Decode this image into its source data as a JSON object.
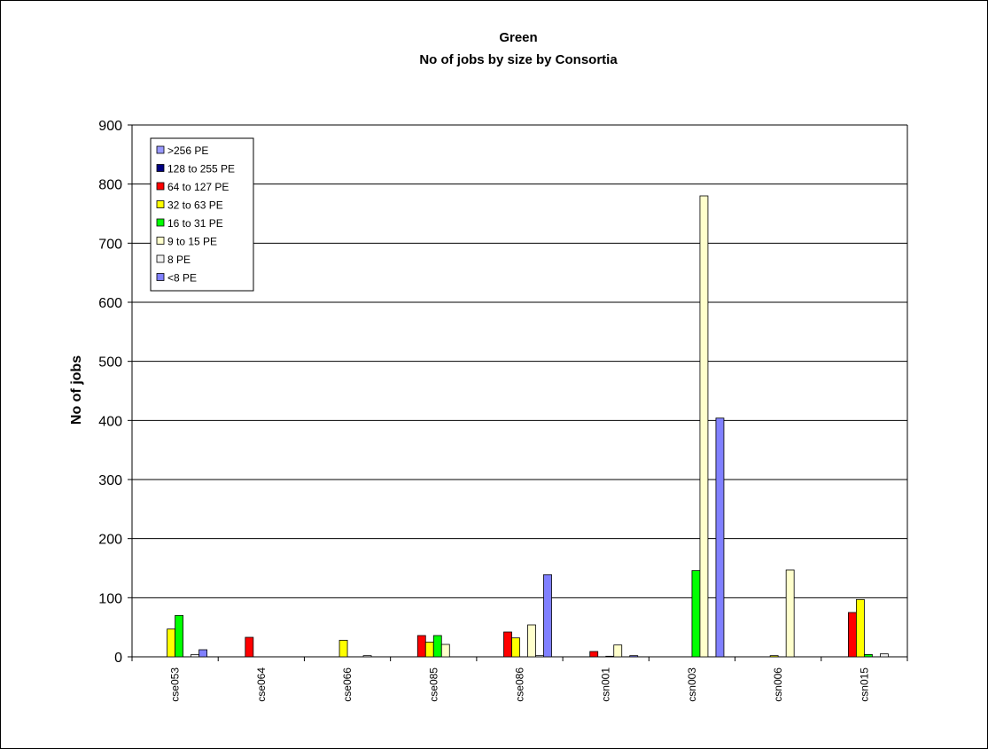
{
  "chart_data": {
    "type": "bar",
    "title": "Green",
    "subtitle": "No of jobs by size by Consortia",
    "xlabel": "",
    "ylabel": "No of jobs",
    "ylim": [
      0,
      900
    ],
    "yticks": [
      0,
      100,
      200,
      300,
      400,
      500,
      600,
      700,
      800,
      900
    ],
    "grid": "horizontal",
    "legend_position": "top-left",
    "categories": [
      "cse053",
      "cse064",
      "cse066",
      "cse085",
      "cse086",
      "csn001",
      "csn003",
      "csn006",
      "csn015"
    ],
    "series": [
      {
        "name": ">256 PE",
        "color": "#9999ff",
        "values": [
          0,
          0,
          0,
          0,
          0,
          0,
          0,
          0,
          0
        ]
      },
      {
        "name": "128 to 255 PE",
        "color": "#000080",
        "values": [
          0,
          0,
          0,
          0,
          0,
          0,
          0,
          0,
          0
        ]
      },
      {
        "name": "64 to 127 PE",
        "color": "#ff0000",
        "values": [
          0,
          33,
          0,
          36,
          42,
          9,
          0,
          0,
          75
        ]
      },
      {
        "name": "32 to 63 PE",
        "color": "#ffff00",
        "values": [
          47,
          0,
          28,
          25,
          32,
          0,
          0,
          2,
          97
        ]
      },
      {
        "name": "16 to 31 PE",
        "color": "#00ff00",
        "values": [
          70,
          0,
          0,
          36,
          0,
          1,
          146,
          0,
          4
        ]
      },
      {
        "name": "9 to 15 PE",
        "color": "#ffffcc",
        "values": [
          0,
          0,
          0,
          21,
          54,
          20,
          780,
          147,
          0
        ]
      },
      {
        "name": "8 PE",
        "color": "#f2f2f2",
        "values": [
          4,
          0,
          2,
          0,
          2,
          0,
          0,
          0,
          5
        ]
      },
      {
        "name": "<8 PE",
        "color": "#8080ff",
        "values": [
          12,
          0,
          0,
          0,
          139,
          2,
          404,
          0,
          0
        ]
      }
    ]
  }
}
